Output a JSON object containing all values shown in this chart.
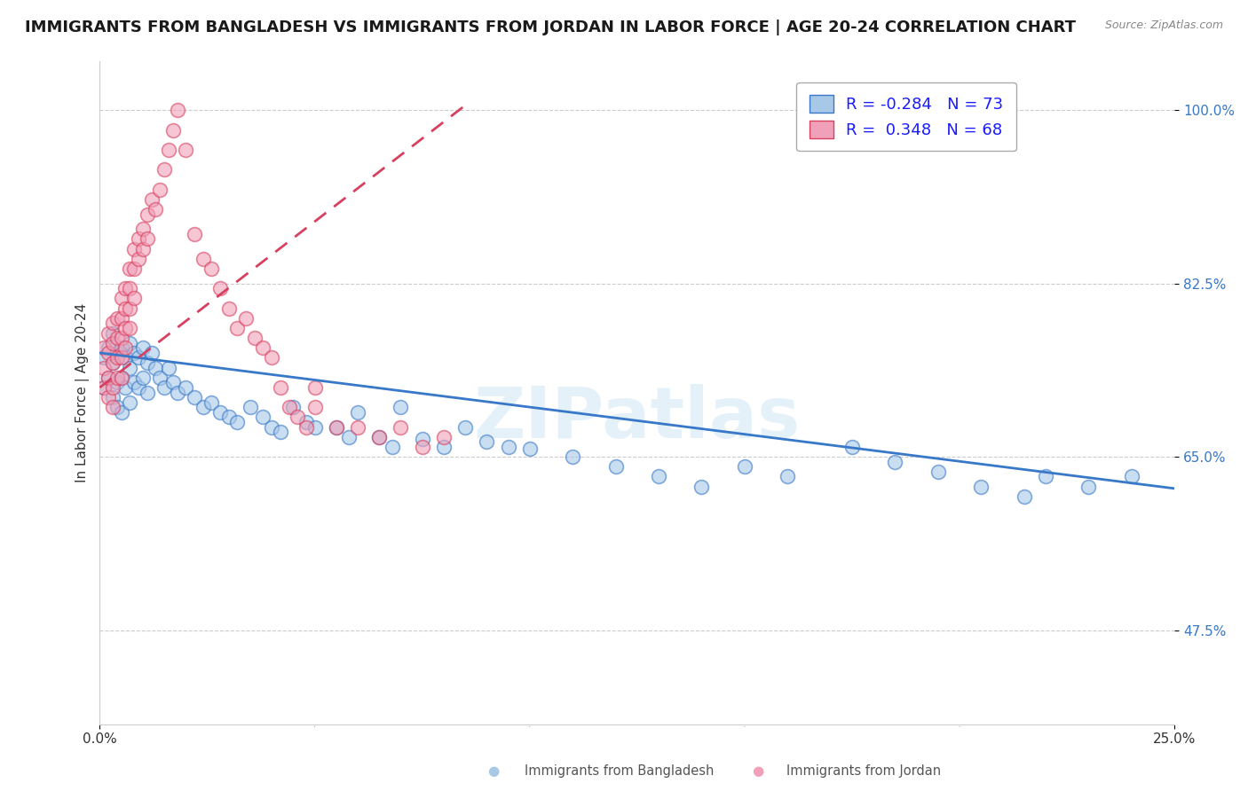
{
  "title": "IMMIGRANTS FROM BANGLADESH VS IMMIGRANTS FROM JORDAN IN LABOR FORCE | AGE 20-24 CORRELATION CHART",
  "source": "Source: ZipAtlas.com",
  "ylabel": "In Labor Force | Age 20-24",
  "x_min": 0.0,
  "x_max": 0.25,
  "y_min": 0.38,
  "y_max": 1.05,
  "y_ticks": [
    0.475,
    0.65,
    0.825,
    1.0
  ],
  "y_tick_labels": [
    "47.5%",
    "65.0%",
    "82.5%",
    "100.0%"
  ],
  "x_ticks": [
    0.0,
    0.25
  ],
  "x_tick_labels": [
    "0.0%",
    "25.0%"
  ],
  "legend_labels": [
    "Immigrants from Bangladesh",
    "Immigrants from Jordan"
  ],
  "R_blue": -0.284,
  "N_blue": 73,
  "R_pink": 0.348,
  "N_pink": 68,
  "blue_color": "#a8c8e8",
  "pink_color": "#f0a0b8",
  "blue_line_color": "#3878c8",
  "pink_line_color": "#d84060",
  "watermark": "ZIPatlas",
  "title_fontsize": 13,
  "axis_label_fontsize": 11,
  "tick_fontsize": 11,
  "blue_line_x0": 0.0,
  "blue_line_x1": 0.25,
  "blue_line_y0": 0.755,
  "blue_line_y1": 0.618,
  "pink_line_x0": 0.0,
  "pink_line_x1": 0.085,
  "pink_line_y0": 0.72,
  "pink_line_y1": 1.005,
  "blue_scatter_x": [
    0.001,
    0.001,
    0.002,
    0.002,
    0.003,
    0.003,
    0.003,
    0.004,
    0.004,
    0.004,
    0.005,
    0.005,
    0.005,
    0.006,
    0.006,
    0.007,
    0.007,
    0.007,
    0.008,
    0.008,
    0.009,
    0.009,
    0.01,
    0.01,
    0.011,
    0.011,
    0.012,
    0.013,
    0.014,
    0.015,
    0.016,
    0.017,
    0.018,
    0.02,
    0.022,
    0.024,
    0.026,
    0.028,
    0.03,
    0.032,
    0.035,
    0.038,
    0.04,
    0.042,
    0.045,
    0.048,
    0.05,
    0.055,
    0.058,
    0.06,
    0.065,
    0.068,
    0.07,
    0.075,
    0.08,
    0.085,
    0.09,
    0.095,
    0.1,
    0.11,
    0.12,
    0.13,
    0.14,
    0.15,
    0.16,
    0.175,
    0.185,
    0.195,
    0.205,
    0.215,
    0.22,
    0.23,
    0.24
  ],
  "blue_scatter_y": [
    0.75,
    0.72,
    0.76,
    0.73,
    0.775,
    0.745,
    0.71,
    0.755,
    0.725,
    0.7,
    0.76,
    0.73,
    0.695,
    0.75,
    0.72,
    0.765,
    0.74,
    0.705,
    0.755,
    0.725,
    0.75,
    0.72,
    0.76,
    0.73,
    0.745,
    0.715,
    0.755,
    0.74,
    0.73,
    0.72,
    0.74,
    0.725,
    0.715,
    0.72,
    0.71,
    0.7,
    0.705,
    0.695,
    0.69,
    0.685,
    0.7,
    0.69,
    0.68,
    0.675,
    0.7,
    0.685,
    0.68,
    0.68,
    0.67,
    0.695,
    0.67,
    0.66,
    0.7,
    0.668,
    0.66,
    0.68,
    0.665,
    0.66,
    0.658,
    0.65,
    0.64,
    0.63,
    0.62,
    0.64,
    0.63,
    0.66,
    0.645,
    0.635,
    0.62,
    0.61,
    0.63,
    0.62,
    0.63
  ],
  "pink_scatter_x": [
    0.001,
    0.001,
    0.001,
    0.002,
    0.002,
    0.002,
    0.002,
    0.003,
    0.003,
    0.003,
    0.003,
    0.003,
    0.004,
    0.004,
    0.004,
    0.004,
    0.005,
    0.005,
    0.005,
    0.005,
    0.005,
    0.006,
    0.006,
    0.006,
    0.006,
    0.007,
    0.007,
    0.007,
    0.007,
    0.008,
    0.008,
    0.008,
    0.009,
    0.009,
    0.01,
    0.01,
    0.011,
    0.011,
    0.012,
    0.013,
    0.014,
    0.015,
    0.016,
    0.017,
    0.018,
    0.02,
    0.022,
    0.024,
    0.026,
    0.028,
    0.03,
    0.032,
    0.034,
    0.036,
    0.038,
    0.04,
    0.042,
    0.044,
    0.046,
    0.048,
    0.05,
    0.055,
    0.06,
    0.065,
    0.07,
    0.075,
    0.08,
    0.05
  ],
  "pink_scatter_y": [
    0.76,
    0.74,
    0.72,
    0.775,
    0.755,
    0.73,
    0.71,
    0.785,
    0.765,
    0.745,
    0.72,
    0.7,
    0.79,
    0.77,
    0.75,
    0.73,
    0.81,
    0.79,
    0.77,
    0.75,
    0.73,
    0.82,
    0.8,
    0.78,
    0.76,
    0.84,
    0.82,
    0.8,
    0.78,
    0.86,
    0.84,
    0.81,
    0.87,
    0.85,
    0.88,
    0.86,
    0.895,
    0.87,
    0.91,
    0.9,
    0.92,
    0.94,
    0.96,
    0.98,
    1.0,
    0.96,
    0.875,
    0.85,
    0.84,
    0.82,
    0.8,
    0.78,
    0.79,
    0.77,
    0.76,
    0.75,
    0.72,
    0.7,
    0.69,
    0.68,
    0.7,
    0.68,
    0.68,
    0.67,
    0.68,
    0.66,
    0.67,
    0.72
  ]
}
